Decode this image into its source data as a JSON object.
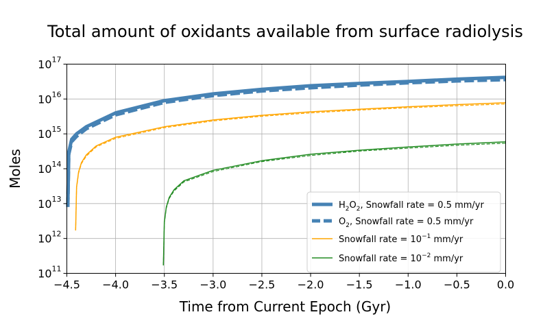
{
  "chart_data": {
    "type": "line",
    "title": "Total amount of oxidants available from surface radiolysis",
    "xlabel": "Time from Current Epoch (Gyr)",
    "ylabel": "Moles",
    "xlim": [
      -4.5,
      0.0
    ],
    "ylim": [
      100000000000.0,
      1e+17
    ],
    "yscale": "log",
    "grid": true,
    "legend_position": "lower-right",
    "x_ticks": [
      {
        "value": -4.5,
        "label": "−4.5"
      },
      {
        "value": -4.0,
        "label": "−4.0"
      },
      {
        "value": -3.5,
        "label": "−3.5"
      },
      {
        "value": -3.0,
        "label": "−3.0"
      },
      {
        "value": -2.5,
        "label": "−2.5"
      },
      {
        "value": -2.0,
        "label": "−2.0"
      },
      {
        "value": -1.5,
        "label": "−1.5"
      },
      {
        "value": -1.0,
        "label": "−1.0"
      },
      {
        "value": -0.5,
        "label": "−0.5"
      },
      {
        "value": 0.0,
        "label": "0.0"
      }
    ],
    "y_ticks": [
      {
        "value": 100000000000.0,
        "base": "10",
        "exp": "11"
      },
      {
        "value": 1000000000000.0,
        "base": "10",
        "exp": "12"
      },
      {
        "value": 10000000000000.0,
        "base": "10",
        "exp": "13"
      },
      {
        "value": 100000000000000.0,
        "base": "10",
        "exp": "14"
      },
      {
        "value": 1000000000000000.0,
        "base": "10",
        "exp": "15"
      },
      {
        "value": 1e+16,
        "base": "10",
        "exp": "16"
      },
      {
        "value": 1e+17,
        "base": "10",
        "exp": "17"
      }
    ],
    "series": [
      {
        "name": "H2O2, Snowfall rate = 0.5 mm/yr",
        "color": "#4682b4",
        "width": 5,
        "dashed": false,
        "x": [
          -4.49,
          -4.48,
          -4.45,
          -4.4,
          -4.3,
          -4.0,
          -3.5,
          -3.0,
          -2.5,
          -2.0,
          -1.5,
          -1.0,
          -0.5,
          0.0
        ],
        "y": [
          8500000000000.0,
          300000000000000.0,
          700000000000000.0,
          1000000000000000.0,
          1600000000000000.0,
          4000000000000000.0,
          9000000000000000.0,
          1.4e+16,
          1.9e+16,
          2.4e+16,
          2.8e+16,
          3.2e+16,
          3.7e+16,
          4.2e+16
        ]
      },
      {
        "name": "O2, Snowfall rate = 0.5 mm/yr",
        "color": "#4682b4",
        "width": 5,
        "dashed": true,
        "x": [
          -4.49,
          -4.48,
          -4.45,
          -4.4,
          -4.3,
          -4.0,
          -3.5,
          -3.0,
          -2.5,
          -2.0,
          -1.5,
          -1.0,
          -0.5,
          0.0
        ],
        "y": [
          8000000000000.0,
          260000000000000.0,
          600000000000000.0,
          850000000000000.0,
          1400000000000000.0,
          3500000000000000.0,
          8000000000000000.0,
          1.25e+16,
          1.7e+16,
          2.1e+16,
          2.5e+16,
          2.9e+16,
          3.3e+16,
          3.6e+16
        ]
      },
      {
        "name": "Snowfall rate = 10⁻¹ mm/yr",
        "label_base": "Snowfall rate = 10",
        "label_exp": "−1",
        "label_unit": " mm/yr",
        "color": "#ffa500",
        "width": 1.5,
        "dashed": false,
        "x": [
          -4.41,
          -4.4,
          -4.38,
          -4.35,
          -4.3,
          -4.2,
          -4.0,
          -3.5,
          -3.0,
          -2.5,
          -2.0,
          -1.5,
          -1.0,
          -0.5,
          0.0
        ],
        "y": [
          1700000000000.0,
          30000000000000.0,
          80000000000000.0,
          150000000000000.0,
          250000000000000.0,
          450000000000000.0,
          800000000000000.0,
          1600000000000000.0,
          2500000000000000.0,
          3400000000000000.0,
          4300000000000000.0,
          5100000000000000.0,
          6000000000000000.0,
          6900000000000000.0,
          7800000000000000.0
        ]
      },
      {
        "name": "Snowfall rate = 10⁻¹ mm/yr (dashed)",
        "color": "#ffa500",
        "width": 1.2,
        "dashed": true,
        "legend": false,
        "x": [
          -4.41,
          -4.4,
          -4.38,
          -4.35,
          -4.3,
          -4.2,
          -4.0,
          -3.5,
          -3.0,
          -2.5,
          -2.0,
          -1.5,
          -1.0,
          -0.5,
          0.0
        ],
        "y": [
          1700000000000.0,
          28000000000000.0,
          75000000000000.0,
          140000000000000.0,
          230000000000000.0,
          420000000000000.0,
          740000000000000.0,
          1500000000000000.0,
          2350000000000000.0,
          3200000000000000.0,
          4000000000000000.0,
          4800000000000000.0,
          5600000000000000.0,
          6400000000000000.0,
          7200000000000000.0
        ]
      },
      {
        "name": "Snowfall rate = 10⁻² mm/yr",
        "label_base": "Snowfall rate = 10",
        "label_exp": "−2",
        "label_unit": " mm/yr",
        "color": "#228b22",
        "width": 1.5,
        "dashed": false,
        "x": [
          -3.51,
          -3.5,
          -3.48,
          -3.45,
          -3.4,
          -3.3,
          -3.0,
          -2.5,
          -2.0,
          -1.5,
          -1.0,
          -0.5,
          0.0
        ],
        "y": [
          170000000000.0,
          3000000000000.0,
          8000000000000.0,
          15000000000000.0,
          25000000000000.0,
          45000000000000.0,
          90000000000000.0,
          170000000000000.0,
          260000000000000.0,
          340000000000000.0,
          420000000000000.0,
          510000000000000.0,
          590000000000000.0
        ]
      },
      {
        "name": "Snowfall rate = 10⁻² mm/yr (dashed)",
        "color": "#228b22",
        "width": 1.2,
        "dashed": true,
        "legend": false,
        "x": [
          -3.51,
          -3.5,
          -3.48,
          -3.45,
          -3.4,
          -3.3,
          -3.0,
          -2.5,
          -2.0,
          -1.5,
          -1.0,
          -0.5,
          0.0
        ],
        "y": [
          170000000000.0,
          2800000000000.0,
          7500000000000.0,
          14000000000000.0,
          23000000000000.0,
          42000000000000.0,
          83000000000000.0,
          160000000000000.0,
          240000000000000.0,
          320000000000000.0,
          390000000000000.0,
          470000000000000.0,
          540000000000000.0
        ]
      }
    ],
    "legend": [
      {
        "base": "H",
        "sub1": "2",
        "mid": "O",
        "sub2": "2",
        "rest": ", Snowfall rate = 0.5 mm/yr",
        "color": "#4682b4",
        "width": 5,
        "dashed": false
      },
      {
        "base": "O",
        "sub1": "2",
        "rest": ", Snowfall rate = 0.5 mm/yr",
        "color": "#4682b4",
        "width": 5,
        "dashed": true
      },
      {
        "rest": "Snowfall rate = 10",
        "sup": "−1",
        "tail": " mm/yr",
        "color": "#ffa500",
        "width": 1.5,
        "dashed": false
      },
      {
        "rest": "Snowfall rate = 10",
        "sup": "−2",
        "tail": " mm/yr",
        "color": "#228b22",
        "width": 1.5,
        "dashed": false
      }
    ]
  }
}
